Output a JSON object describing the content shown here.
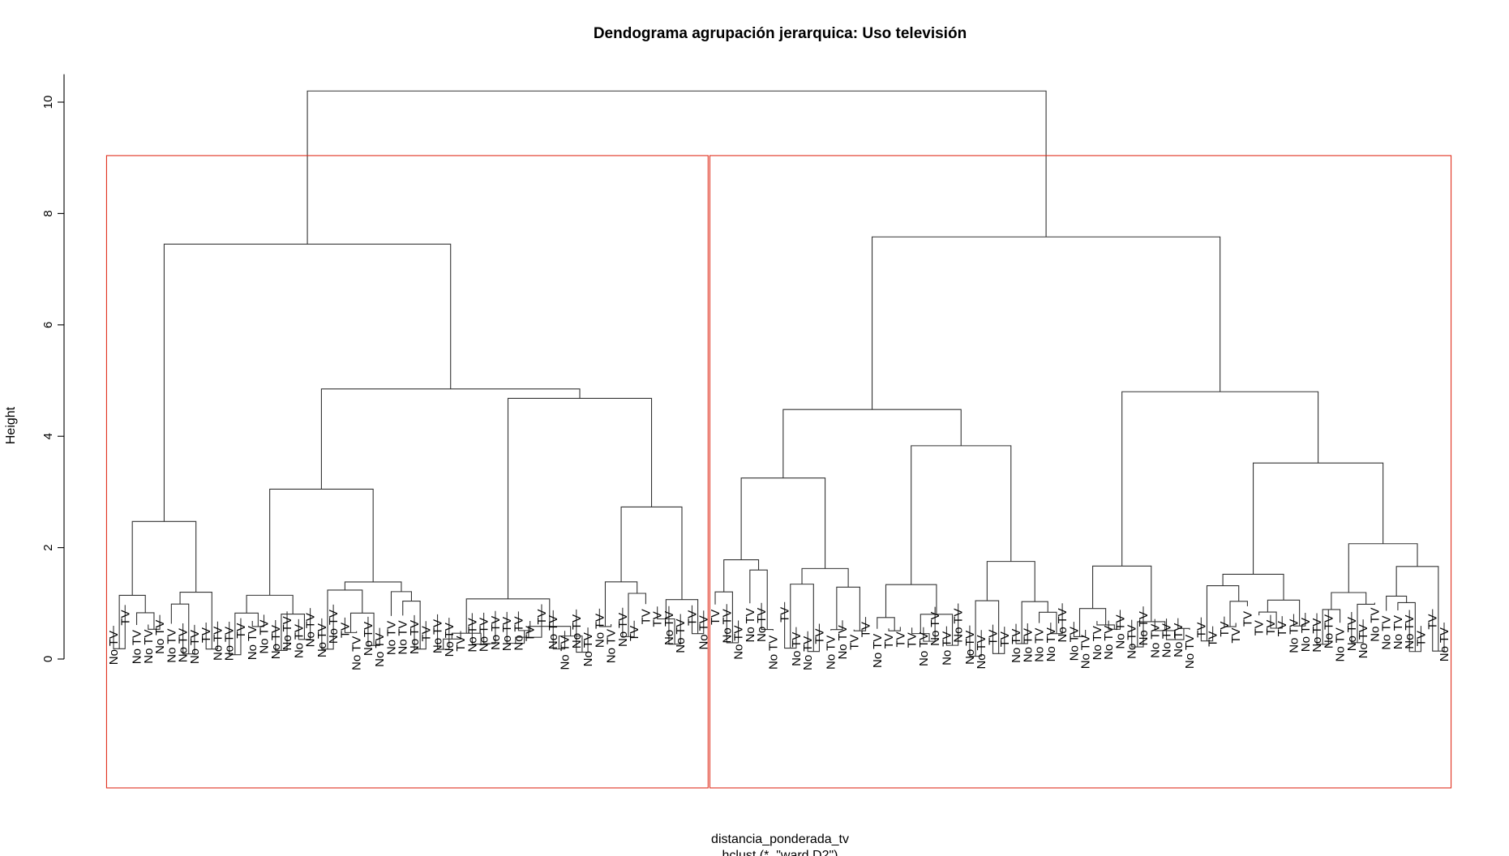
{
  "chart_data": {
    "type": "dendrogram",
    "title": "Dendograma agrupación jerarquica: Uso televisión",
    "xlabel": "distancia_ponderada_tv",
    "sub": "hclust (*, \"ward.D2\")",
    "ylabel": "Height",
    "ylim": [
      0,
      10.5
    ],
    "yticks": [
      0,
      2,
      4,
      6,
      8,
      10
    ],
    "highlight_color": "#e0301e",
    "highlight_k": 2,
    "root_height": 10.2,
    "groups_left": [
      {
        "h": 7.45,
        "children": [
          {
            "h": 2.47,
            "labels": [
              "No TV",
              "TV",
              "No TV",
              "No TV",
              "No TV",
              "No TV",
              "No TV",
              "No TV",
              "TV",
              "No TV"
            ]
          },
          {
            "h": 4.85,
            "children": [
              {
                "h": 3.05,
                "labels": [
                  "No TV",
                  "TV",
                  "No TV",
                  "No TV",
                  "No TV",
                  "No TV",
                  "No TV",
                  "No TV",
                  "No TV",
                  "No TV",
                  "TV",
                  "No TV",
                  "No TV",
                  "No TV",
                  "No TV",
                  "No TV",
                  "No TV",
                  "TV"
                ]
              },
              {
                "h": 4.68,
                "children": [
                  {
                    "h": 1.08,
                    "labels": [
                      "No TV",
                      "No TV",
                      "TV",
                      "No TV",
                      "No TV",
                      "No TV",
                      "No TV",
                      "No TV",
                      "TV",
                      "TV",
                      "No TV",
                      "No TV",
                      "No TV",
                      "No TV"
                    ]
                  },
                  {
                    "h": 2.73,
                    "labels": [
                      "No TV",
                      "No TV",
                      "No TV",
                      "TV",
                      "TV",
                      "TV",
                      "No TV",
                      "No TV",
                      "TV",
                      "No TV"
                    ]
                  }
                ]
              }
            ]
          }
        ]
      }
    ],
    "groups_right": [
      {
        "h": 7.58,
        "children": [
          {
            "h": 4.48,
            "children": [
              {
                "h": 3.25,
                "labels": [
                  "TV",
                  "No TV",
                  "No TV",
                  "No TV",
                  "No TV",
                  "No TV",
                  "TV",
                  "No TV",
                  "No TV",
                  "TV",
                  "No TV",
                  "No TV",
                  "TV",
                  "TV"
                ]
              },
              {
                "h": 3.83,
                "labels": [
                  "No TV",
                  "TV",
                  "TV",
                  "TV",
                  "No TV",
                  "No TV",
                  "No TV",
                  "No TV",
                  "No TV",
                  "No TV",
                  "TV",
                  "TV",
                  "No TV",
                  "No TV",
                  "No TV",
                  "No TV",
                  "No TV"
                ]
              }
            ]
          },
          {
            "h": 4.8,
            "children": [
              {
                "h": 1.67,
                "labels": [
                  "No TV",
                  "No TV",
                  "No TV",
                  "No TV",
                  "No TV",
                  "No TV",
                  "No TV",
                  "No TV",
                  "No TV",
                  "No TV",
                  "No TV"
                ]
              },
              {
                "h": 3.52,
                "labels": [
                  "TV",
                  "TV",
                  "TV",
                  "TV",
                  "TV",
                  "TV",
                  "TV",
                  "TV",
                  "No TV",
                  "No TV",
                  "No TV",
                  "No TV",
                  "No TV",
                  "No TV",
                  "No TV",
                  "No TV",
                  "No TV",
                  "No TV",
                  "No TV",
                  "TV",
                  "TV",
                  "No TV"
                ]
              }
            ]
          }
        ]
      }
    ]
  }
}
